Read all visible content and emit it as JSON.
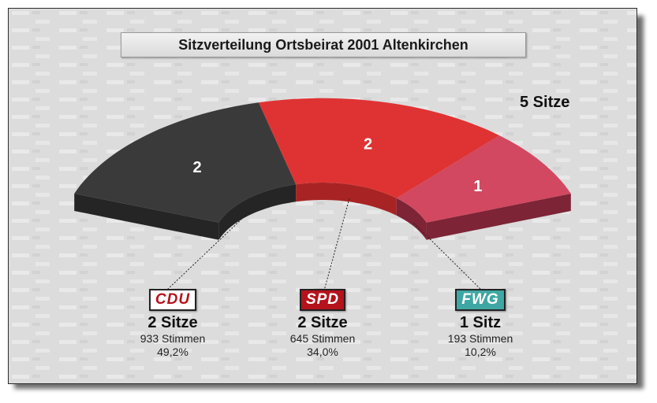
{
  "title": "Sitzverteilung Ortsbeirat 2001 Altenkirchen",
  "total_label": "5 Sitze",
  "parties": [
    {
      "logo": "CDU",
      "seats_text": "2 Sitze",
      "votes_text": "933 Stimmen",
      "pct_text": "49,2%",
      "logo_bg": "#ffffff",
      "logo_fg": "#b5121b"
    },
    {
      "logo": "SPD",
      "seats_text": "2 Sitze",
      "votes_text": "645 Stimmen",
      "pct_text": "34,0%",
      "logo_bg": "#b5121b",
      "logo_fg": "#ffffff"
    },
    {
      "logo": "FWG",
      "seats_text": "1 Sitz",
      "votes_text": "193 Stimmen",
      "pct_text": "10,2%",
      "logo_bg": "#3fa7a3",
      "logo_fg": "#ffffff"
    }
  ],
  "chart_data": {
    "type": "pie",
    "subtype": "semicircle-3d",
    "title": "Sitzverteilung Ortsbeirat 2001 Altenkirchen",
    "total": 5,
    "total_label": "5 Sitze",
    "categories": [
      "CDU",
      "SPD",
      "FWG"
    ],
    "values": [
      2,
      2,
      1
    ],
    "labels": [
      "2",
      "2",
      "1"
    ],
    "votes": [
      933,
      645,
      193
    ],
    "percent": [
      49.2,
      34.0,
      10.2
    ],
    "colors": [
      "#3a3a3a",
      "#df3333",
      "#d24860"
    ],
    "side_colors": [
      "#252525",
      "#a82424",
      "#7d2436"
    ]
  }
}
